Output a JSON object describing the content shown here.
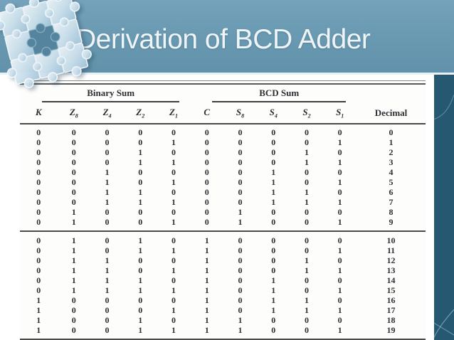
{
  "title": "Derivation of BCD Adder",
  "colors": {
    "header_blue": "#6898b0",
    "accent_band_teal": "#265871",
    "title_text": "#eff4f6",
    "table_ink": "#2e2e34",
    "rule_gray": "#4a4a4a"
  },
  "table": {
    "group_headers": [
      {
        "label": "Binary Sum"
      },
      {
        "label": "BCD Sum"
      },
      {
        "label": ""
      }
    ],
    "columns": [
      {
        "label": "K",
        "sub": ""
      },
      {
        "label": "Z",
        "sub": "8"
      },
      {
        "label": "Z",
        "sub": "4"
      },
      {
        "label": "Z",
        "sub": "2"
      },
      {
        "label": "Z",
        "sub": "1"
      },
      {
        "label": "C",
        "sub": ""
      },
      {
        "label": "S",
        "sub": "8"
      },
      {
        "label": "S",
        "sub": "4"
      },
      {
        "label": "S",
        "sub": "2"
      },
      {
        "label": "S",
        "sub": "1"
      },
      {
        "label": "Decimal",
        "sub": ""
      }
    ],
    "sections": [
      {
        "rows": [
          [
            "0",
            "0",
            "0",
            "0",
            "0",
            "0",
            "0",
            "0",
            "0",
            "0",
            "0"
          ],
          [
            "0",
            "0",
            "0",
            "0",
            "1",
            "0",
            "0",
            "0",
            "0",
            "1",
            "1"
          ],
          [
            "0",
            "0",
            "0",
            "1",
            "0",
            "0",
            "0",
            "0",
            "1",
            "0",
            "2"
          ],
          [
            "0",
            "0",
            "0",
            "1",
            "1",
            "0",
            "0",
            "0",
            "1",
            "1",
            "3"
          ],
          [
            "0",
            "0",
            "1",
            "0",
            "0",
            "0",
            "0",
            "1",
            "0",
            "0",
            "4"
          ],
          [
            "0",
            "0",
            "1",
            "0",
            "1",
            "0",
            "0",
            "1",
            "0",
            "1",
            "5"
          ],
          [
            "0",
            "0",
            "1",
            "1",
            "0",
            "0",
            "0",
            "1",
            "1",
            "0",
            "6"
          ],
          [
            "0",
            "0",
            "1",
            "1",
            "1",
            "0",
            "0",
            "1",
            "1",
            "1",
            "7"
          ],
          [
            "0",
            "1",
            "0",
            "0",
            "0",
            "0",
            "1",
            "0",
            "0",
            "0",
            "8"
          ],
          [
            "0",
            "1",
            "0",
            "0",
            "1",
            "0",
            "1",
            "0",
            "0",
            "1",
            "9"
          ]
        ]
      },
      {
        "rows": [
          [
            "0",
            "1",
            "0",
            "1",
            "0",
            "1",
            "0",
            "0",
            "0",
            "0",
            "10"
          ],
          [
            "0",
            "1",
            "0",
            "1",
            "1",
            "1",
            "0",
            "0",
            "0",
            "1",
            "11"
          ],
          [
            "0",
            "1",
            "1",
            "0",
            "0",
            "1",
            "0",
            "0",
            "1",
            "0",
            "12"
          ],
          [
            "0",
            "1",
            "1",
            "0",
            "1",
            "1",
            "0",
            "0",
            "1",
            "1",
            "13"
          ],
          [
            "0",
            "1",
            "1",
            "1",
            "0",
            "1",
            "0",
            "1",
            "0",
            "0",
            "14"
          ],
          [
            "0",
            "1",
            "1",
            "1",
            "1",
            "1",
            "0",
            "1",
            "0",
            "1",
            "15"
          ],
          [
            "1",
            "0",
            "0",
            "0",
            "0",
            "1",
            "0",
            "1",
            "1",
            "0",
            "16"
          ],
          [
            "1",
            "0",
            "0",
            "0",
            "1",
            "1",
            "0",
            "1",
            "1",
            "1",
            "17"
          ],
          [
            "1",
            "0",
            "0",
            "1",
            "0",
            "1",
            "1",
            "0",
            "0",
            "0",
            "18"
          ],
          [
            "1",
            "0",
            "0",
            "1",
            "1",
            "1",
            "1",
            "0",
            "0",
            "1",
            "19"
          ]
        ]
      }
    ]
  }
}
